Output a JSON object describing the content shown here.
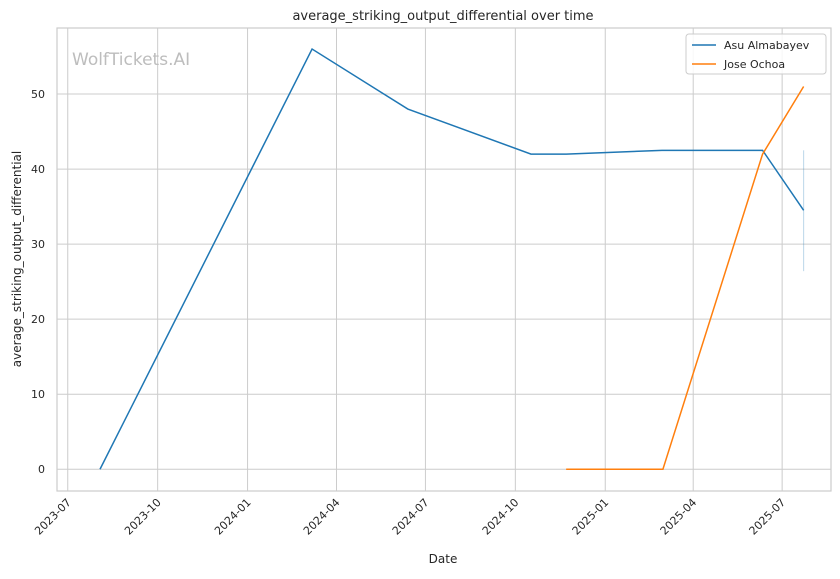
{
  "watermark": "WolfTickets.AI",
  "chart_data": {
    "type": "line",
    "title": "average_striking_output_differential over time",
    "xlabel": "Date",
    "ylabel": "average_striking_output_differential",
    "x_ticks": [
      "2023-07",
      "2023-10",
      "2024-01",
      "2024-04",
      "2024-07",
      "2024-10",
      "2025-01",
      "2025-04",
      "2025-07"
    ],
    "y_ticks": [
      0,
      10,
      20,
      30,
      40,
      50
    ],
    "xlim": [
      "2023-06-20",
      "2025-08-20"
    ],
    "ylim": [
      -2.9,
      58.8
    ],
    "grid": true,
    "legend_position": "top-right",
    "series": [
      {
        "name": "Asu Almabayev",
        "color": "#1f77b4",
        "x": [
          "2023-08-03",
          "2024-03-07",
          "2024-06-13",
          "2024-10-17",
          "2024-11-22",
          "2025-02-28",
          "2025-06-11",
          "2025-07-23"
        ],
        "y": [
          0,
          56,
          48,
          42,
          42,
          42.5,
          42.5,
          34.5
        ],
        "error_band": {
          "x": "2025-07-23",
          "low": 26.4,
          "high": 42.5
        }
      },
      {
        "name": "Jose Ochoa",
        "color": "#ff7f0e",
        "x": [
          "2024-11-22",
          "2025-03-01",
          "2025-06-11",
          "2025-07-23"
        ],
        "y": [
          0,
          0,
          42,
          51
        ]
      }
    ]
  }
}
